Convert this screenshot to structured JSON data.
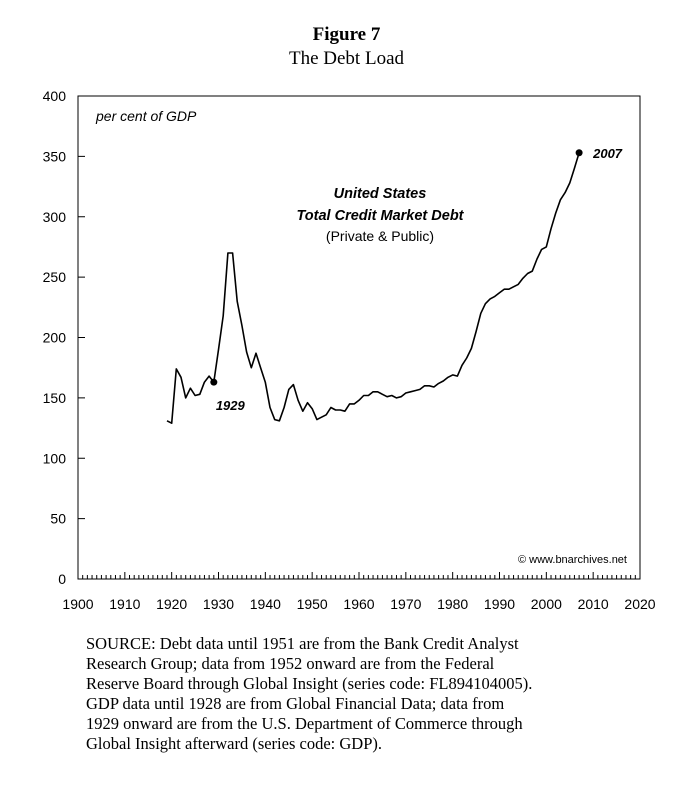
{
  "figure": {
    "title": "Figure 7",
    "subtitle": "The Debt Load"
  },
  "chart_data": {
    "type": "line",
    "ylabel": "per cent of GDP",
    "xlim": [
      1900,
      2020
    ],
    "ylim": [
      0,
      400
    ],
    "x_ticks": [
      "1900",
      "1910",
      "1920",
      "1930",
      "1940",
      "1950",
      "1960",
      "1970",
      "1980",
      "1990",
      "2000",
      "2010",
      "2020"
    ],
    "y_ticks": [
      "0",
      "50",
      "100",
      "150",
      "200",
      "250",
      "300",
      "350",
      "400"
    ],
    "grid": false,
    "annotation_title_1": "United States",
    "annotation_title_2": "Total Credit Market Debt",
    "annotation_title_3": "(Private & Public)",
    "marker_1929_label": "1929",
    "marker_2007_label": "2007",
    "copyright": "© www.bnarchives.net",
    "series": [
      {
        "color": "#000000",
        "x": [
          1919,
          1920,
          1921,
          1922,
          1923,
          1924,
          1925,
          1926,
          1927,
          1928,
          1929,
          1930,
          1931,
          1932,
          1933,
          1934,
          1935,
          1936,
          1937,
          1938,
          1939,
          1940,
          1941,
          1942,
          1943,
          1944,
          1945,
          1946,
          1947,
          1948,
          1949,
          1950,
          1951,
          1952,
          1953,
          1954,
          1955,
          1956,
          1957,
          1958,
          1959,
          1960,
          1961,
          1962,
          1963,
          1964,
          1965,
          1966,
          1967,
          1968,
          1969,
          1970,
          1971,
          1972,
          1973,
          1974,
          1975,
          1976,
          1977,
          1978,
          1979,
          1980,
          1981,
          1982,
          1983,
          1984,
          1985,
          1986,
          1987,
          1988,
          1989,
          1990,
          1991,
          1992,
          1993,
          1994,
          1995,
          1996,
          1997,
          1998,
          1999,
          2000,
          2001,
          2002,
          2003,
          2004,
          2005,
          2006,
          2007
        ],
        "values": [
          131,
          129,
          174,
          167,
          150,
          158,
          152,
          153,
          163,
          168,
          163,
          190,
          218,
          270,
          270,
          230,
          210,
          188,
          175,
          187,
          175,
          163,
          142,
          132,
          131,
          142,
          157,
          161,
          148,
          139,
          146,
          141,
          132,
          134,
          136,
          142,
          140,
          140,
          139,
          145,
          145,
          148,
          152,
          152,
          155,
          155,
          153,
          151,
          152,
          150,
          151,
          154,
          155,
          156,
          157,
          160,
          160,
          159,
          162,
          164,
          167,
          169,
          168,
          177,
          183,
          191,
          205,
          220,
          228,
          232,
          234,
          237,
          240,
          240,
          242,
          244,
          249,
          253,
          255,
          265,
          273,
          275,
          290,
          303,
          314,
          320,
          328,
          340,
          353
        ]
      }
    ],
    "markers": [
      {
        "x": 1929,
        "y": 163,
        "label": "1929"
      },
      {
        "x": 2007,
        "y": 353,
        "label": "2007"
      }
    ]
  },
  "source_note": {
    "line1": "SOURCE: Debt data until 1951 are from the Bank Credit Analyst",
    "line2": "Research Group; data from 1952 onward are from the Federal",
    "line3": "Reserve Board through Global Insight (series code: FL894104005).",
    "line4": "GDP data until 1928 are from Global Financial Data; data from",
    "line5": "1929 onward are from the U.S. Department of Commerce through",
    "line6": "Global Insight afterward (series code: GDP)."
  }
}
